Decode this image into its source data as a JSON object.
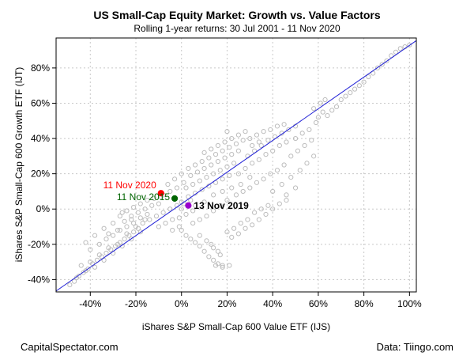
{
  "footer": {
    "left": "CapitalSpectator.com",
    "right": "Data: Tiingo.com"
  },
  "chart_data": {
    "type": "scatter",
    "title": "US Small-Cap Equity Market: Growth vs. Value Factors",
    "subtitle": "Rolling 1-year returns: 30 Jul 2001 - 11 Nov 2020",
    "xlabel": "iShares S&P Small-Cap 600 Value ETF (IJS)",
    "ylabel": "iShares S&P Small-Cap 600 Growth ETF (IJT)",
    "xlim": [
      -0.55,
      1.03
    ],
    "ylim": [
      -0.47,
      0.97
    ],
    "x_ticks": [
      -0.4,
      -0.2,
      0,
      0.2,
      0.4,
      0.6,
      0.8,
      1.0
    ],
    "x_tick_labels": [
      "-40%",
      "-20%",
      "0%",
      "20%",
      "40%",
      "60%",
      "80%",
      "100%"
    ],
    "y_ticks": [
      -0.4,
      -0.2,
      0,
      0.2,
      0.4,
      0.6,
      0.8
    ],
    "y_tick_labels": [
      "-40%",
      "-20%",
      "0%",
      "20%",
      "40%",
      "60%",
      "80%"
    ],
    "grid": true,
    "point_color": "#bdbdbd",
    "line_color": "#1f1fd6",
    "regression_line": [
      [
        -0.55,
        -0.465
      ],
      [
        1.03,
        0.955
      ]
    ],
    "series": [
      {
        "points": [
          [
            -0.49,
            -0.43
          ],
          [
            -0.47,
            -0.41
          ],
          [
            -0.45,
            -0.38
          ],
          [
            -0.43,
            -0.36
          ],
          [
            -0.41,
            -0.34
          ],
          [
            -0.39,
            -0.31
          ],
          [
            -0.37,
            -0.29
          ],
          [
            -0.35,
            -0.27
          ],
          [
            -0.33,
            -0.25
          ],
          [
            -0.31,
            -0.23
          ],
          [
            -0.29,
            -0.21
          ],
          [
            -0.27,
            -0.19
          ],
          [
            -0.25,
            -0.17
          ],
          [
            -0.23,
            -0.15
          ],
          [
            -0.21,
            -0.13
          ],
          [
            -0.19,
            -0.11
          ],
          [
            -0.44,
            -0.32
          ],
          [
            -0.4,
            -0.3
          ],
          [
            -0.36,
            -0.26
          ],
          [
            -0.32,
            -0.22
          ],
          [
            -0.28,
            -0.2
          ],
          [
            -0.24,
            -0.14
          ],
          [
            -0.2,
            -0.1
          ],
          [
            -0.16,
            -0.06
          ],
          [
            -0.46,
            -0.39
          ],
          [
            -0.42,
            -0.35
          ],
          [
            -0.38,
            -0.33
          ],
          [
            -0.34,
            -0.29
          ],
          [
            -0.3,
            -0.25
          ],
          [
            -0.26,
            -0.21
          ],
          [
            -0.22,
            -0.17
          ],
          [
            -0.18,
            -0.13
          ],
          [
            -0.36,
            -0.2
          ],
          [
            -0.33,
            -0.17
          ],
          [
            -0.3,
            -0.15
          ],
          [
            -0.27,
            -0.12
          ],
          [
            -0.24,
            -0.1
          ],
          [
            -0.21,
            -0.08
          ],
          [
            -0.18,
            -0.05
          ],
          [
            -0.15,
            -0.03
          ],
          [
            -0.32,
            -0.14
          ],
          [
            -0.28,
            -0.12
          ],
          [
            -0.25,
            -0.07
          ],
          [
            -0.22,
            -0.04
          ],
          [
            -0.19,
            -0.02
          ],
          [
            -0.16,
            0.0
          ],
          [
            -0.13,
            0.02
          ],
          [
            -0.1,
            0.03
          ],
          [
            -0.27,
            -0.04
          ],
          [
            -0.24,
            -0.01
          ],
          [
            -0.21,
            0.01
          ],
          [
            -0.18,
            0.03
          ],
          [
            -0.15,
            0.05
          ],
          [
            -0.12,
            0.06
          ],
          [
            -0.09,
            0.07
          ],
          [
            -0.17,
            -0.08
          ],
          [
            -0.14,
            -0.06
          ],
          [
            -0.11,
            -0.04
          ],
          [
            -0.08,
            -0.02
          ],
          [
            -0.05,
            0.0
          ],
          [
            -0.02,
            0.02
          ],
          [
            0.01,
            0.03
          ],
          [
            0.04,
            0.05
          ],
          [
            -0.1,
            -0.1
          ],
          [
            -0.07,
            -0.08
          ],
          [
            -0.04,
            -0.06
          ],
          [
            -0.01,
            -0.05
          ],
          [
            0.02,
            -0.03
          ],
          [
            0.05,
            -0.01
          ],
          [
            0.0,
            -0.12
          ],
          [
            0.02,
            -0.15
          ],
          [
            0.04,
            -0.17
          ],
          [
            0.06,
            -0.19
          ],
          [
            0.08,
            -0.21
          ],
          [
            0.1,
            -0.24
          ],
          [
            0.12,
            -0.27
          ],
          [
            0.14,
            -0.29
          ],
          [
            0.16,
            -0.31
          ],
          [
            0.18,
            -0.33
          ],
          [
            0.08,
            -0.15
          ],
          [
            0.11,
            -0.18
          ],
          [
            0.14,
            -0.22
          ],
          [
            0.17,
            -0.26
          ],
          [
            0.13,
            -0.2
          ],
          [
            0.16,
            -0.24
          ],
          [
            0.2,
            -0.13
          ],
          [
            0.23,
            -0.11
          ],
          [
            0.26,
            -0.08
          ],
          [
            0.29,
            -0.06
          ],
          [
            0.22,
            -0.16
          ],
          [
            0.25,
            -0.14
          ],
          [
            0.28,
            -0.11
          ],
          [
            0.31,
            -0.09
          ],
          [
            0.34,
            -0.06
          ],
          [
            0.37,
            -0.03
          ],
          [
            0.4,
            0.0
          ],
          [
            0.43,
            0.03
          ],
          [
            0.46,
            0.05
          ],
          [
            0.32,
            -0.02
          ],
          [
            0.35,
            0.0
          ],
          [
            0.38,
            0.02
          ],
          [
            -0.04,
            -0.12
          ],
          [
            -0.01,
            -0.1
          ],
          [
            0.05,
            -0.08
          ],
          [
            0.08,
            -0.06
          ],
          [
            0.11,
            -0.04
          ],
          [
            0.14,
            -0.01
          ],
          [
            0.17,
            0.02
          ],
          [
            0.2,
            0.05
          ],
          [
            0.21,
            -0.32
          ],
          [
            0.18,
            -0.32
          ],
          [
            0.15,
            -0.32
          ],
          [
            0.0,
            0.04
          ],
          [
            0.03,
            0.07
          ],
          [
            0.06,
            0.09
          ],
          [
            0.09,
            0.11
          ],
          [
            0.12,
            0.13
          ],
          [
            0.15,
            0.15
          ],
          [
            0.18,
            0.17
          ],
          [
            0.21,
            0.19
          ],
          [
            0.02,
            0.12
          ],
          [
            0.05,
            0.14
          ],
          [
            0.08,
            0.16
          ],
          [
            0.11,
            0.18
          ],
          [
            0.14,
            0.2
          ],
          [
            0.17,
            0.22
          ],
          [
            0.2,
            0.24
          ],
          [
            0.23,
            0.26
          ],
          [
            0.04,
            0.19
          ],
          [
            0.07,
            0.21
          ],
          [
            0.1,
            0.23
          ],
          [
            0.13,
            0.25
          ],
          [
            0.16,
            0.27
          ],
          [
            0.19,
            0.29
          ],
          [
            0.22,
            0.31
          ],
          [
            0.25,
            0.33
          ],
          [
            0.06,
            0.25
          ],
          [
            0.09,
            0.27
          ],
          [
            0.12,
            0.29
          ],
          [
            0.15,
            0.31
          ],
          [
            0.18,
            0.33
          ],
          [
            0.21,
            0.35
          ],
          [
            0.24,
            0.37
          ],
          [
            0.27,
            0.39
          ],
          [
            0.0,
            0.0
          ],
          [
            0.06,
            0.02
          ],
          [
            0.1,
            0.04
          ],
          [
            0.14,
            0.08
          ],
          [
            0.18,
            0.1
          ],
          [
            0.22,
            0.12
          ],
          [
            0.26,
            0.14
          ],
          [
            0.3,
            0.18
          ],
          [
            0.24,
            0.08
          ],
          [
            0.27,
            0.1
          ],
          [
            0.3,
            0.12
          ],
          [
            0.33,
            0.15
          ],
          [
            0.36,
            0.17
          ],
          [
            0.39,
            0.2
          ],
          [
            0.42,
            0.22
          ],
          [
            0.45,
            0.25
          ],
          [
            0.25,
            0.2
          ],
          [
            0.28,
            0.23
          ],
          [
            0.31,
            0.26
          ],
          [
            0.34,
            0.28
          ],
          [
            0.37,
            0.31
          ],
          [
            0.4,
            0.33
          ],
          [
            0.43,
            0.36
          ],
          [
            0.46,
            0.38
          ],
          [
            0.29,
            0.3
          ],
          [
            0.32,
            0.33
          ],
          [
            0.35,
            0.36
          ],
          [
            0.38,
            0.39
          ],
          [
            0.41,
            0.41
          ],
          [
            0.44,
            0.43
          ],
          [
            0.47,
            0.45
          ],
          [
            0.5,
            0.47
          ],
          [
            0.3,
            0.4
          ],
          [
            0.33,
            0.42
          ],
          [
            0.36,
            0.44
          ],
          [
            0.39,
            0.45
          ],
          [
            0.42,
            0.47
          ],
          [
            0.45,
            0.48
          ],
          [
            0.31,
            0.36
          ],
          [
            0.34,
            0.38
          ],
          [
            0.48,
            0.3
          ],
          [
            0.51,
            0.33
          ],
          [
            0.54,
            0.36
          ],
          [
            0.57,
            0.39
          ],
          [
            0.5,
            0.4
          ],
          [
            0.53,
            0.43
          ],
          [
            0.56,
            0.45
          ],
          [
            0.59,
            0.49
          ],
          [
            0.6,
            0.52
          ],
          [
            0.62,
            0.55
          ],
          [
            0.64,
            0.53
          ],
          [
            0.66,
            0.56
          ],
          [
            0.68,
            0.58
          ],
          [
            0.58,
            0.57
          ],
          [
            0.61,
            0.6
          ],
          [
            0.63,
            0.62
          ],
          [
            0.7,
            0.62
          ],
          [
            0.72,
            0.64
          ],
          [
            0.74,
            0.66
          ],
          [
            0.76,
            0.68
          ],
          [
            0.78,
            0.7
          ],
          [
            0.8,
            0.72
          ],
          [
            0.82,
            0.75
          ],
          [
            0.84,
            0.77
          ],
          [
            0.86,
            0.8
          ],
          [
            0.88,
            0.82
          ],
          [
            0.9,
            0.84
          ],
          [
            0.92,
            0.87
          ],
          [
            0.94,
            0.89
          ],
          [
            0.96,
            0.91
          ],
          [
            0.98,
            0.92
          ],
          [
            1.0,
            0.93
          ],
          [
            0.1,
            0.32
          ],
          [
            0.13,
            0.34
          ],
          [
            0.16,
            0.36
          ],
          [
            0.19,
            0.38
          ],
          [
            0.22,
            0.4
          ],
          [
            0.25,
            0.42
          ],
          [
            0.28,
            0.44
          ],
          [
            0.2,
            0.44
          ],
          [
            -0.08,
            0.08
          ],
          [
            -0.05,
            0.1
          ],
          [
            -0.02,
            0.12
          ],
          [
            0.01,
            0.15
          ],
          [
            -0.06,
            0.14
          ],
          [
            -0.03,
            0.17
          ],
          [
            0.0,
            0.2
          ],
          [
            0.03,
            0.23
          ],
          [
            -0.3,
            -0.08
          ],
          [
            -0.34,
            -0.11
          ],
          [
            -0.38,
            -0.15
          ],
          [
            -0.42,
            -0.19
          ],
          [
            -0.4,
            -0.23
          ],
          [
            -0.26,
            -0.02
          ],
          [
            -0.22,
            -0.06
          ],
          [
            0.4,
            0.1
          ],
          [
            0.44,
            0.14
          ],
          [
            0.48,
            0.18
          ],
          [
            0.52,
            0.22
          ],
          [
            0.55,
            0.26
          ],
          [
            0.58,
            0.3
          ],
          [
            0.5,
            0.12
          ],
          [
            0.46,
            0.08
          ]
        ]
      }
    ],
    "annotations": [
      {
        "label": "11 Nov 2020",
        "x": -0.09,
        "y": 0.09,
        "color": "#ff0000",
        "bold": false,
        "side": "left"
      },
      {
        "label": "11 Nov 2015",
        "x": -0.03,
        "y": 0.06,
        "color": "#006400",
        "bold": false,
        "side": "left"
      },
      {
        "label": "13 Nov 2019",
        "x": 0.03,
        "y": 0.02,
        "color": "#9900cc",
        "text_color": "#000000",
        "bold": true,
        "side": "right"
      }
    ]
  }
}
